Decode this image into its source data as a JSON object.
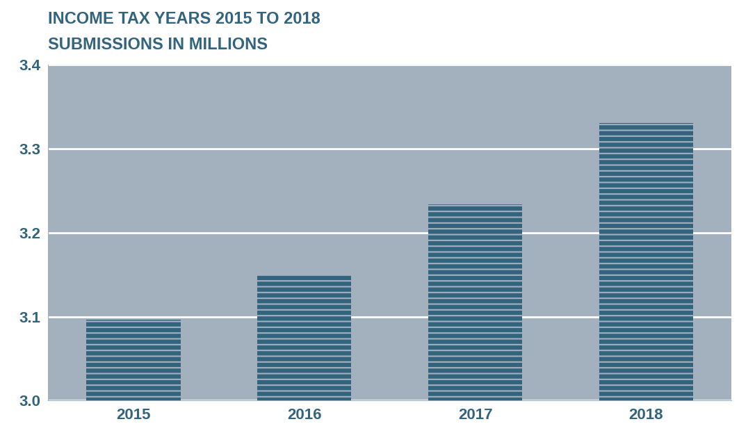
{
  "chart_data": {
    "type": "bar",
    "title": "INCOME TAX YEARS 2015 TO 2018",
    "subtitle": "SUBMISSIONS IN MILLIONS",
    "categories": [
      "2015",
      "2016",
      "2017",
      "2018"
    ],
    "values": [
      3.096,
      3.15,
      3.234,
      3.331
    ],
    "color": "#33647e",
    "ylim": [
      3.0,
      3.4
    ],
    "yticks": [
      3.0,
      3.1,
      3.2,
      3.3,
      3.4
    ],
    "grid": true
  }
}
